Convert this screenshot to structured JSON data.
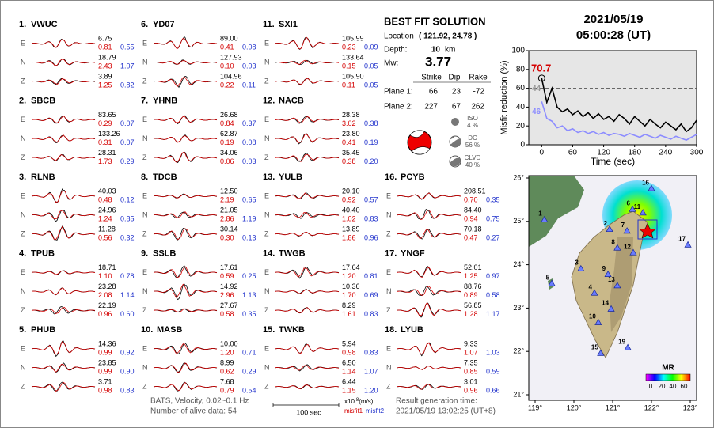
{
  "header": {
    "date": "2021/05/19",
    "time": "05:00:28  (UT)"
  },
  "components": [
    "E",
    "N",
    "Z"
  ],
  "stations": [
    {
      "number": "1.",
      "name": "VWUC",
      "rows": [
        [
          "6.75",
          "0.81",
          "0.55"
        ],
        [
          "18.79",
          "2.43",
          "1.07"
        ],
        [
          "3.89",
          "1.25",
          "0.82"
        ]
      ]
    },
    {
      "number": "2.",
      "name": "SBCB",
      "rows": [
        [
          "83.65",
          "0.29",
          "0.07"
        ],
        [
          "133.26",
          "0.31",
          "0.07"
        ],
        [
          "28.31",
          "1.73",
          "0.29"
        ]
      ]
    },
    {
      "number": "3.",
      "name": "RLNB",
      "rows": [
        [
          "40.03",
          "0.48",
          "0.12"
        ],
        [
          "24.96",
          "1.24",
          "0.85"
        ],
        [
          "11.28",
          "0.56",
          "0.32"
        ]
      ]
    },
    {
      "number": "4.",
      "name": "TPUB",
      "rows": [
        [
          "18.71",
          "1.10",
          "0.78"
        ],
        [
          "23.28",
          "2.08",
          "1.14"
        ],
        [
          "22.19",
          "0.96",
          "0.60"
        ]
      ]
    },
    {
      "number": "5.",
      "name": "PHUB",
      "rows": [
        [
          "14.36",
          "0.99",
          "0.92"
        ],
        [
          "23.85",
          "0.99",
          "0.90"
        ],
        [
          "3.71",
          "0.98",
          "0.83"
        ]
      ]
    },
    {
      "number": "6.",
      "name": "YD07",
      "rows": [
        [
          "89.00",
          "0.41",
          "0.08"
        ],
        [
          "127.93",
          "0.10",
          "0.03"
        ],
        [
          "104.96",
          "0.22",
          "0.11"
        ]
      ]
    },
    {
      "number": "7.",
      "name": "YHNB",
      "rows": [
        [
          "26.68",
          "0.84",
          "0.37"
        ],
        [
          "62.87",
          "0.19",
          "0.08"
        ],
        [
          "34.06",
          "0.06",
          "0.03"
        ]
      ]
    },
    {
      "number": "8.",
      "name": "TDCB",
      "rows": [
        [
          "12.50",
          "2.19",
          "0.65"
        ],
        [
          "21.05",
          "2.86",
          "1.19"
        ],
        [
          "30.14",
          "0.30",
          "0.13"
        ]
      ]
    },
    {
      "number": "9.",
      "name": "SSLB",
      "rows": [
        [
          "17.61",
          "0.59",
          "0.25"
        ],
        [
          "14.92",
          "2.96",
          "1.13"
        ],
        [
          "27.67",
          "0.58",
          "0.35"
        ]
      ]
    },
    {
      "number": "10.",
      "name": "MASB",
      "rows": [
        [
          "10.00",
          "1.20",
          "0.71"
        ],
        [
          "8.99",
          "0.62",
          "0.29"
        ],
        [
          "7.68",
          "0.79",
          "0.54"
        ]
      ]
    },
    {
      "number": "11.",
      "name": "SXI1",
      "rows": [
        [
          "105.99",
          "0.23",
          "0.09"
        ],
        [
          "133.64",
          "0.15",
          "0.05"
        ],
        [
          "105.90",
          "0.11",
          "0.05"
        ]
      ]
    },
    {
      "number": "12.",
      "name": "NACB",
      "rows": [
        [
          "28.38",
          "3.02",
          "0.38"
        ],
        [
          "23.80",
          "0.41",
          "0.19"
        ],
        [
          "35.45",
          "0.38",
          "0.20"
        ]
      ]
    },
    {
      "number": "13.",
      "name": "YULB",
      "rows": [
        [
          "20.10",
          "0.92",
          "0.57"
        ],
        [
          "40.40",
          "1.02",
          "0.83"
        ],
        [
          "13.89",
          "1.86",
          "0.96"
        ]
      ]
    },
    {
      "number": "14.",
      "name": "TWGB",
      "rows": [
        [
          "17.64",
          "1.20",
          "0.81"
        ],
        [
          "10.36",
          "1.70",
          "0.69"
        ],
        [
          "8.29",
          "1.61",
          "0.83"
        ]
      ]
    },
    {
      "number": "15.",
      "name": "TWKB",
      "rows": [
        [
          "5.94",
          "0.98",
          "0.83"
        ],
        [
          "6.50",
          "1.14",
          "1.07"
        ],
        [
          "6.44",
          "1.15",
          "1.20"
        ]
      ]
    },
    {
      "number": "16.",
      "name": "PCYB",
      "rows": [
        [
          "208.51",
          "0.70",
          "0.35"
        ],
        [
          "84.40",
          "0.94",
          "0.75"
        ],
        [
          "70.18",
          "0.47",
          "0.27"
        ]
      ]
    },
    {
      "number": "17.",
      "name": "YNGF",
      "rows": [
        [
          "52.01",
          "1.25",
          "0.97"
        ],
        [
          "88.76",
          "0.89",
          "0.58"
        ],
        [
          "56.85",
          "1.28",
          "1.17"
        ]
      ]
    },
    {
      "number": "18.",
      "name": "LYUB",
      "rows": [
        [
          "9.33",
          "1.07",
          "1.03"
        ],
        [
          "7.35",
          "0.85",
          "0.59"
        ],
        [
          "3.01",
          "0.96",
          "0.66"
        ]
      ]
    }
  ],
  "solution": {
    "title": "BEST FIT SOLUTION",
    "location_label": "Location",
    "location": "( 121.92, 24.78 )",
    "depth_label": "Depth:",
    "depth": "10",
    "depth_unit": "km",
    "mw_label": "Mw:",
    "mw": "3.77",
    "columns": [
      "Strike",
      "Dip",
      "Rake"
    ],
    "planes": [
      [
        "Plane 1:",
        "66",
        "23",
        "-72"
      ],
      [
        "Plane 2:",
        "227",
        "67",
        "262"
      ]
    ],
    "iso_label": "ISO",
    "iso": "4 %",
    "dc_label": "DC",
    "dc": "56 %",
    "clvd_label": "CLVD",
    "clvd": "40 %"
  },
  "chart_data": {
    "type": "line",
    "ylabel": "Misfit reduction (%)",
    "xlabel": "Time (sec)",
    "xlim": [
      -25,
      300
    ],
    "ylim": [
      0,
      100
    ],
    "xticks": [
      0,
      60,
      120,
      180,
      240,
      300
    ],
    "yticks": [
      0,
      20,
      40,
      60,
      80,
      100
    ],
    "reference_line": 60,
    "annotations": [
      "70.7",
      "44",
      "46"
    ],
    "x": [
      0,
      10,
      20,
      30,
      40,
      50,
      60,
      70,
      80,
      90,
      100,
      110,
      120,
      130,
      140,
      150,
      160,
      170,
      180,
      190,
      200,
      210,
      220,
      230,
      240,
      250,
      260,
      270,
      280,
      290,
      300
    ],
    "series": [
      {
        "color": "#000000",
        "values": [
          70.7,
          45,
          60,
          40,
          35,
          38,
          32,
          36,
          30,
          34,
          28,
          33,
          27,
          30,
          25,
          32,
          28,
          22,
          30,
          25,
          20,
          27,
          22,
          18,
          24,
          20,
          16,
          22,
          14,
          18,
          26
        ]
      },
      {
        "color": "#8c8cff",
        "values": [
          46,
          28,
          25,
          18,
          20,
          15,
          17,
          13,
          15,
          12,
          14,
          11,
          13,
          10,
          12,
          11,
          9,
          12,
          10,
          8,
          11,
          9,
          7,
          10,
          8,
          6,
          9,
          7,
          5,
          8,
          11
        ]
      }
    ]
  },
  "map": {
    "xticks": [
      {
        "value": 119,
        "label": "119°"
      },
      {
        "value": 120,
        "label": "120°"
      },
      {
        "value": 121,
        "label": "121°"
      },
      {
        "value": 122,
        "label": "122°"
      },
      {
        "value": 123,
        "label": "123°"
      }
    ],
    "yticks": [
      {
        "value": 21,
        "label": "21°"
      },
      {
        "value": 22,
        "label": "22°"
      },
      {
        "value": 23,
        "label": "23°"
      },
      {
        "value": 24,
        "label": "24°"
      },
      {
        "value": 25,
        "label": "25°"
      },
      {
        "value": 26,
        "label": "26°"
      }
    ],
    "stations": [
      {
        "label": "1",
        "lon": 119.24,
        "lat": 25.04
      },
      {
        "label": "2",
        "lon": 120.92,
        "lat": 24.82
      },
      {
        "label": "3",
        "lon": 120.18,
        "lat": 23.91
      },
      {
        "label": "4",
        "lon": 120.53,
        "lat": 23.35
      },
      {
        "label": "5",
        "lon": 119.43,
        "lat": 23.57
      },
      {
        "label": "6",
        "lon": 121.51,
        "lat": 25.28
      },
      {
        "label": "7",
        "lon": 121.37,
        "lat": 24.78
      },
      {
        "label": "8",
        "lon": 121.12,
        "lat": 24.39
      },
      {
        "label": "9",
        "lon": 120.88,
        "lat": 23.78
      },
      {
        "label": "10",
        "lon": 120.63,
        "lat": 22.67
      },
      {
        "label": "11",
        "lon": 121.78,
        "lat": 25.2
      },
      {
        "label": "12",
        "lon": 121.53,
        "lat": 24.28
      },
      {
        "label": "13",
        "lon": 121.12,
        "lat": 23.52
      },
      {
        "label": "14",
        "lon": 120.96,
        "lat": 22.98
      },
      {
        "label": "15",
        "lon": 120.69,
        "lat": 21.96
      },
      {
        "label": "16",
        "lon": 122.0,
        "lat": 25.76
      },
      {
        "label": "17",
        "lon": 122.94,
        "lat": 24.46
      },
      {
        "label": "19",
        "lon": 121.39,
        "lat": 22.09
      }
    ],
    "colorbar": {
      "title": "MR",
      "ticks": [
        "0",
        "20",
        "40",
        "60"
      ]
    }
  },
  "footer": {
    "source": "BATS, Velocity, 0.02~0.1 Hz",
    "alive": "Number of alive data: 54",
    "scale": "100 sec",
    "unit_base": "x10",
    "unit_exp": "-8",
    "unit": "(m/s)",
    "misfit1": "misfit1",
    "misfit2": "misfit2",
    "result_label": "Result generation time:",
    "result_time": "2021/05/19 13:02:25 (UT+8)"
  }
}
